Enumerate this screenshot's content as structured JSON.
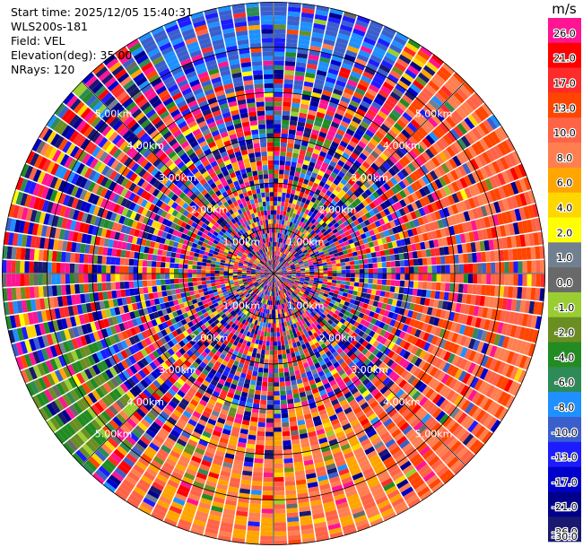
{
  "info": {
    "start_time": "Start time: 2025/12/05 15:40:31",
    "instrument": "WLS200s-181",
    "field": "Field: VEL",
    "elevation": "Elevation(deg): 35.00",
    "nrays": "NRays: 120"
  },
  "chart_data": {
    "type": "heatmap",
    "projection": "polar-ppi",
    "field": "VEL",
    "units": "m/s",
    "nrays": 120,
    "elevation_deg": 35.0,
    "max_range_km": 6.0,
    "range_rings_km": [
      1,
      2,
      3,
      4,
      5,
      6
    ],
    "ring_labels": [
      "1.00km",
      "2.00km",
      "3.00km",
      "4.00km",
      "5.00km"
    ],
    "colorbar": {
      "title": "m/s",
      "ticks": [
        "26.0",
        "21.0",
        "17.0",
        "13.0",
        "10.0",
        "8.0",
        "6.0",
        "4.0",
        "2.0",
        "1.0",
        "0.0",
        "-1.0",
        "-2.0",
        "-4.0",
        "-6.0",
        "-8.0",
        "-10.0",
        "-13.0",
        "-17.0",
        "-21.0",
        "-26.0",
        "-30.0"
      ],
      "colors": [
        "#ff1493",
        "#ff0000",
        "#ff2a2a",
        "#ff4500",
        "#ff6347",
        "#ff7f50",
        "#ffa500",
        "#ffd700",
        "#ffff00",
        "#708090",
        "#696969",
        "#9acd32",
        "#6b8e23",
        "#228b22",
        "#2e8b57",
        "#1e90ff",
        "#3a5fcd",
        "#1c1cff",
        "#0000cd",
        "#00008b",
        "#191970"
      ]
    },
    "coherent_regions": [
      {
        "azimuth_deg": [
          40,
          150
        ],
        "range_km": [
          3.2,
          6.0
        ],
        "value_ms": 9.0
      },
      {
        "azimuth_deg": [
          150,
          215
        ],
        "range_km": [
          3.0,
          6.0
        ],
        "value_ms": 7.0
      },
      {
        "azimuth_deg": [
          330,
          30
        ],
        "range_km": [
          4.0,
          6.0
        ],
        "value_ms": -11.0
      },
      {
        "azimuth_deg": [
          225,
          250
        ],
        "range_km": [
          4.2,
          6.0
        ],
        "value_ms": -3.0
      }
    ]
  }
}
